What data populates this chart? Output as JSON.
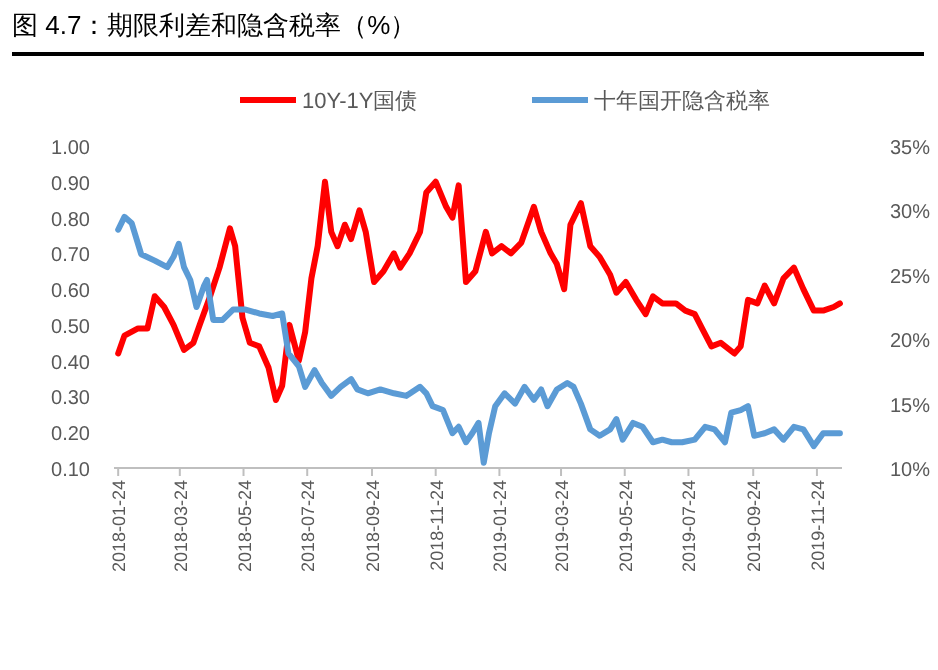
{
  "chart_data": {
    "type": "line",
    "title": "图 4.7：期限利差和隐含税率（%）",
    "legend": "top",
    "grid": false,
    "marker": "none",
    "line_style": "solid",
    "xlim": [
      "2018-01-20",
      "2019-12-18"
    ],
    "xticks": [
      "2018-01-24",
      "2018-03-24",
      "2018-05-24",
      "2018-07-24",
      "2018-09-24",
      "2018-11-24",
      "2019-01-24",
      "2019-03-24",
      "2019-05-24",
      "2019-07-24",
      "2019-09-24",
      "2019-11-24"
    ],
    "ylim": [
      0.1,
      1.0
    ],
    "yticks": [
      {
        "value": 0.1,
        "label": "0.10"
      },
      {
        "value": 0.2,
        "label": "0.20"
      },
      {
        "value": 0.3,
        "label": "0.30"
      },
      {
        "value": 0.4,
        "label": "0.40"
      },
      {
        "value": 0.5,
        "label": "0.50"
      },
      {
        "value": 0.6,
        "label": "0.60"
      },
      {
        "value": 0.7,
        "label": "0.70"
      },
      {
        "value": 0.8,
        "label": "0.80"
      },
      {
        "value": 0.9,
        "label": "0.90"
      },
      {
        "value": 1.0,
        "label": "1.00"
      }
    ],
    "y2lim": [
      10,
      35
    ],
    "y2ticks": [
      {
        "value": 10,
        "label": "10%"
      },
      {
        "value": 15,
        "label": "15%"
      },
      {
        "value": 20,
        "label": "20%"
      },
      {
        "value": 25,
        "label": "25%"
      },
      {
        "value": 30,
        "label": "30%"
      },
      {
        "value": 35,
        "label": "35%"
      }
    ],
    "series": [
      {
        "name": "10Y-1Y国债",
        "color": "#ff0000",
        "x": [
          "2018-01-24",
          "2018-01-30",
          "2018-02-12",
          "2018-02-21",
          "2018-02-28",
          "2018-03-09",
          "2018-03-18",
          "2018-03-28",
          "2018-04-06",
          "2018-04-12",
          "2018-04-22",
          "2018-05-01",
          "2018-05-11",
          "2018-05-16",
          "2018-05-23",
          "2018-05-30",
          "2018-06-08",
          "2018-06-17",
          "2018-06-24",
          "2018-06-30",
          "2018-07-07",
          "2018-07-16",
          "2018-07-22",
          "2018-07-28",
          "2018-08-03",
          "2018-08-10",
          "2018-08-16",
          "2018-08-22",
          "2018-08-29",
          "2018-09-04",
          "2018-09-12",
          "2018-09-18",
          "2018-09-26",
          "2018-10-05",
          "2018-10-15",
          "2018-10-21",
          "2018-10-30",
          "2018-11-09",
          "2018-11-15",
          "2018-11-24",
          "2018-12-04",
          "2018-12-10",
          "2018-12-16",
          "2018-12-23",
          "2019-01-01",
          "2019-01-11",
          "2019-01-17",
          "2019-01-26",
          "2019-02-04",
          "2019-02-14",
          "2019-02-26",
          "2019-03-05",
          "2019-03-14",
          "2019-03-20",
          "2019-03-27",
          "2019-04-02",
          "2019-04-12",
          "2019-04-21",
          "2019-04-30",
          "2019-05-10",
          "2019-05-16",
          "2019-05-25",
          "2019-06-04",
          "2019-06-13",
          "2019-06-20",
          "2019-06-29",
          "2019-07-12",
          "2019-07-21",
          "2019-07-30",
          "2019-08-06",
          "2019-08-15",
          "2019-08-24",
          "2019-09-06",
          "2019-09-12",
          "2019-09-19",
          "2019-09-28",
          "2019-10-05",
          "2019-10-14",
          "2019-10-23",
          "2019-11-02",
          "2019-11-11",
          "2019-11-21",
          "2019-11-30",
          "2019-12-10",
          "2019-12-16"
        ],
        "values": [
          0.42,
          0.47,
          0.49,
          0.49,
          0.58,
          0.55,
          0.5,
          0.43,
          0.45,
          0.5,
          0.58,
          0.66,
          0.77,
          0.72,
          0.52,
          0.45,
          0.44,
          0.38,
          0.29,
          0.33,
          0.5,
          0.4,
          0.48,
          0.63,
          0.72,
          0.9,
          0.76,
          0.72,
          0.78,
          0.74,
          0.82,
          0.76,
          0.62,
          0.65,
          0.7,
          0.66,
          0.7,
          0.76,
          0.87,
          0.9,
          0.83,
          0.8,
          0.89,
          0.62,
          0.65,
          0.76,
          0.7,
          0.72,
          0.7,
          0.73,
          0.83,
          0.76,
          0.7,
          0.67,
          0.6,
          0.78,
          0.84,
          0.72,
          0.69,
          0.64,
          0.59,
          0.62,
          0.57,
          0.53,
          0.58,
          0.56,
          0.56,
          0.54,
          0.53,
          0.49,
          0.44,
          0.45,
          0.42,
          0.44,
          0.57,
          0.56,
          0.61,
          0.56,
          0.63,
          0.66,
          0.6,
          0.54,
          0.54,
          0.55,
          0.56
        ]
      },
      {
        "name": "十年国开隐含税率",
        "color": "#5b9bd5",
        "axis": "y2",
        "x": [
          "2018-01-24",
          "2018-01-30",
          "2018-02-06",
          "2018-02-15",
          "2018-02-28",
          "2018-03-12",
          "2018-03-18",
          "2018-03-23",
          "2018-03-28",
          "2018-04-03",
          "2018-04-09",
          "2018-04-16",
          "2018-04-19",
          "2018-04-25",
          "2018-05-04",
          "2018-05-14",
          "2018-05-26",
          "2018-06-08",
          "2018-06-21",
          "2018-06-30",
          "2018-07-06",
          "2018-07-16",
          "2018-07-22",
          "2018-07-31",
          "2018-08-07",
          "2018-08-16",
          "2018-08-25",
          "2018-09-04",
          "2018-09-10",
          "2018-09-20",
          "2018-10-02",
          "2018-10-15",
          "2018-10-27",
          "2018-11-09",
          "2018-11-15",
          "2018-11-21",
          "2018-12-01",
          "2018-12-10",
          "2018-12-16",
          "2018-12-23",
          "2018-12-29",
          "2019-01-04",
          "2019-01-09",
          "2019-01-14",
          "2019-01-20",
          "2019-01-29",
          "2019-02-08",
          "2019-02-17",
          "2019-02-26",
          "2019-03-05",
          "2019-03-11",
          "2019-03-20",
          "2019-03-30",
          "2019-04-05",
          "2019-04-12",
          "2019-04-21",
          "2019-04-30",
          "2019-05-10",
          "2019-05-16",
          "2019-05-22",
          "2019-06-01",
          "2019-06-10",
          "2019-06-20",
          "2019-06-29",
          "2019-07-08",
          "2019-07-18",
          "2019-07-30",
          "2019-08-09",
          "2019-08-18",
          "2019-08-28",
          "2019-09-03",
          "2019-09-12",
          "2019-09-19",
          "2019-09-25",
          "2019-10-05",
          "2019-10-14",
          "2019-10-23",
          "2019-11-02",
          "2019-11-11",
          "2019-11-21",
          "2019-11-30",
          "2019-12-10",
          "2019-12-16"
        ],
        "values": [
          28.5,
          29.5,
          29,
          26.6,
          26.1,
          25.6,
          26.4,
          27.4,
          25.6,
          24.6,
          22.5,
          24.1,
          24.6,
          21.5,
          21.5,
          22.3,
          22.3,
          22.0,
          21.8,
          22.0,
          18.9,
          17.9,
          16.3,
          17.6,
          16.6,
          15.6,
          16.3,
          16.9,
          16.1,
          15.8,
          16.1,
          15.8,
          15.6,
          16.3,
          15.8,
          14.8,
          14.5,
          12.7,
          13.2,
          12.0,
          12.7,
          13.5,
          10.4,
          12.7,
          14.8,
          15.8,
          15.0,
          16.3,
          15.3,
          16.1,
          14.8,
          16.1,
          16.6,
          16.3,
          15.0,
          13.0,
          12.5,
          13.0,
          13.8,
          12.2,
          13.5,
          13.2,
          12.0,
          12.2,
          12.0,
          12.0,
          12.2,
          13.2,
          13.0,
          12.0,
          14.3,
          14.5,
          14.8,
          12.5,
          12.7,
          13.0,
          12.2,
          13.2,
          13.0,
          11.7,
          12.7,
          12.7,
          12.7
        ]
      }
    ]
  }
}
